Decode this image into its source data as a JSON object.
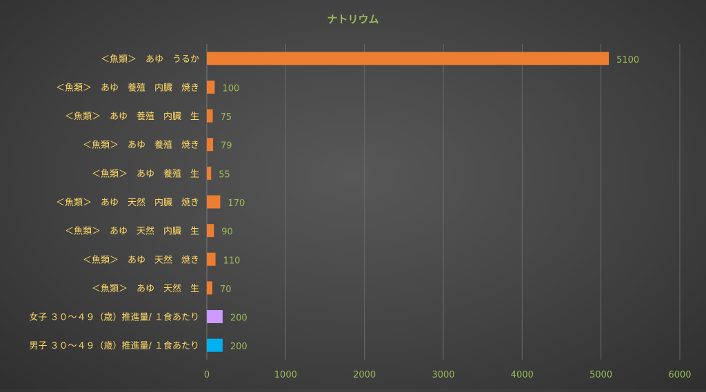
{
  "chart_data": {
    "type": "bar",
    "orientation": "horizontal",
    "title": "ナトリウム",
    "xlabel": "",
    "ylabel": "",
    "xlim": [
      0,
      6000
    ],
    "x_ticks": [
      "0",
      "1000",
      "2000",
      "3000",
      "4000",
      "5000",
      "6000"
    ],
    "grid": "vertical",
    "legend": "none",
    "data_labels": true,
    "categories": [
      "＜魚類＞　あゆ　うるか",
      "＜魚類＞　あゆ　養殖　内臓　焼き",
      "＜魚類＞　あゆ　養殖　内臓　生",
      "＜魚類＞　あゆ　養殖　焼き",
      "＜魚類＞　あゆ　養殖　生",
      "＜魚類＞　あゆ　天然　内臓　焼き",
      "＜魚類＞　あゆ　天然　内臓　生",
      "＜魚類＞　あゆ　天然　焼き",
      "＜魚類＞　あゆ　天然　生",
      "女子 ３０～４９（歳）推進量/ １食あたり",
      "男子 ３０～４９（歳）推進量/ １食あたり"
    ],
    "values": [
      5100,
      100,
      75,
      79,
      55,
      170,
      90,
      110,
      70,
      200,
      200
    ],
    "bar_colors": [
      "#ed7d31",
      "#ed7d31",
      "#ed7d31",
      "#ed7d31",
      "#ed7d31",
      "#ed7d31",
      "#ed7d31",
      "#ed7d31",
      "#ed7d31",
      "#cc99ff",
      "#00b0f0"
    ],
    "colors": {
      "title": "#9bbb59",
      "category_label": "#ffd966",
      "value_label": "#9bbb59",
      "tick_label": "#9bbb59",
      "grid": "#6a6a6a"
    }
  }
}
